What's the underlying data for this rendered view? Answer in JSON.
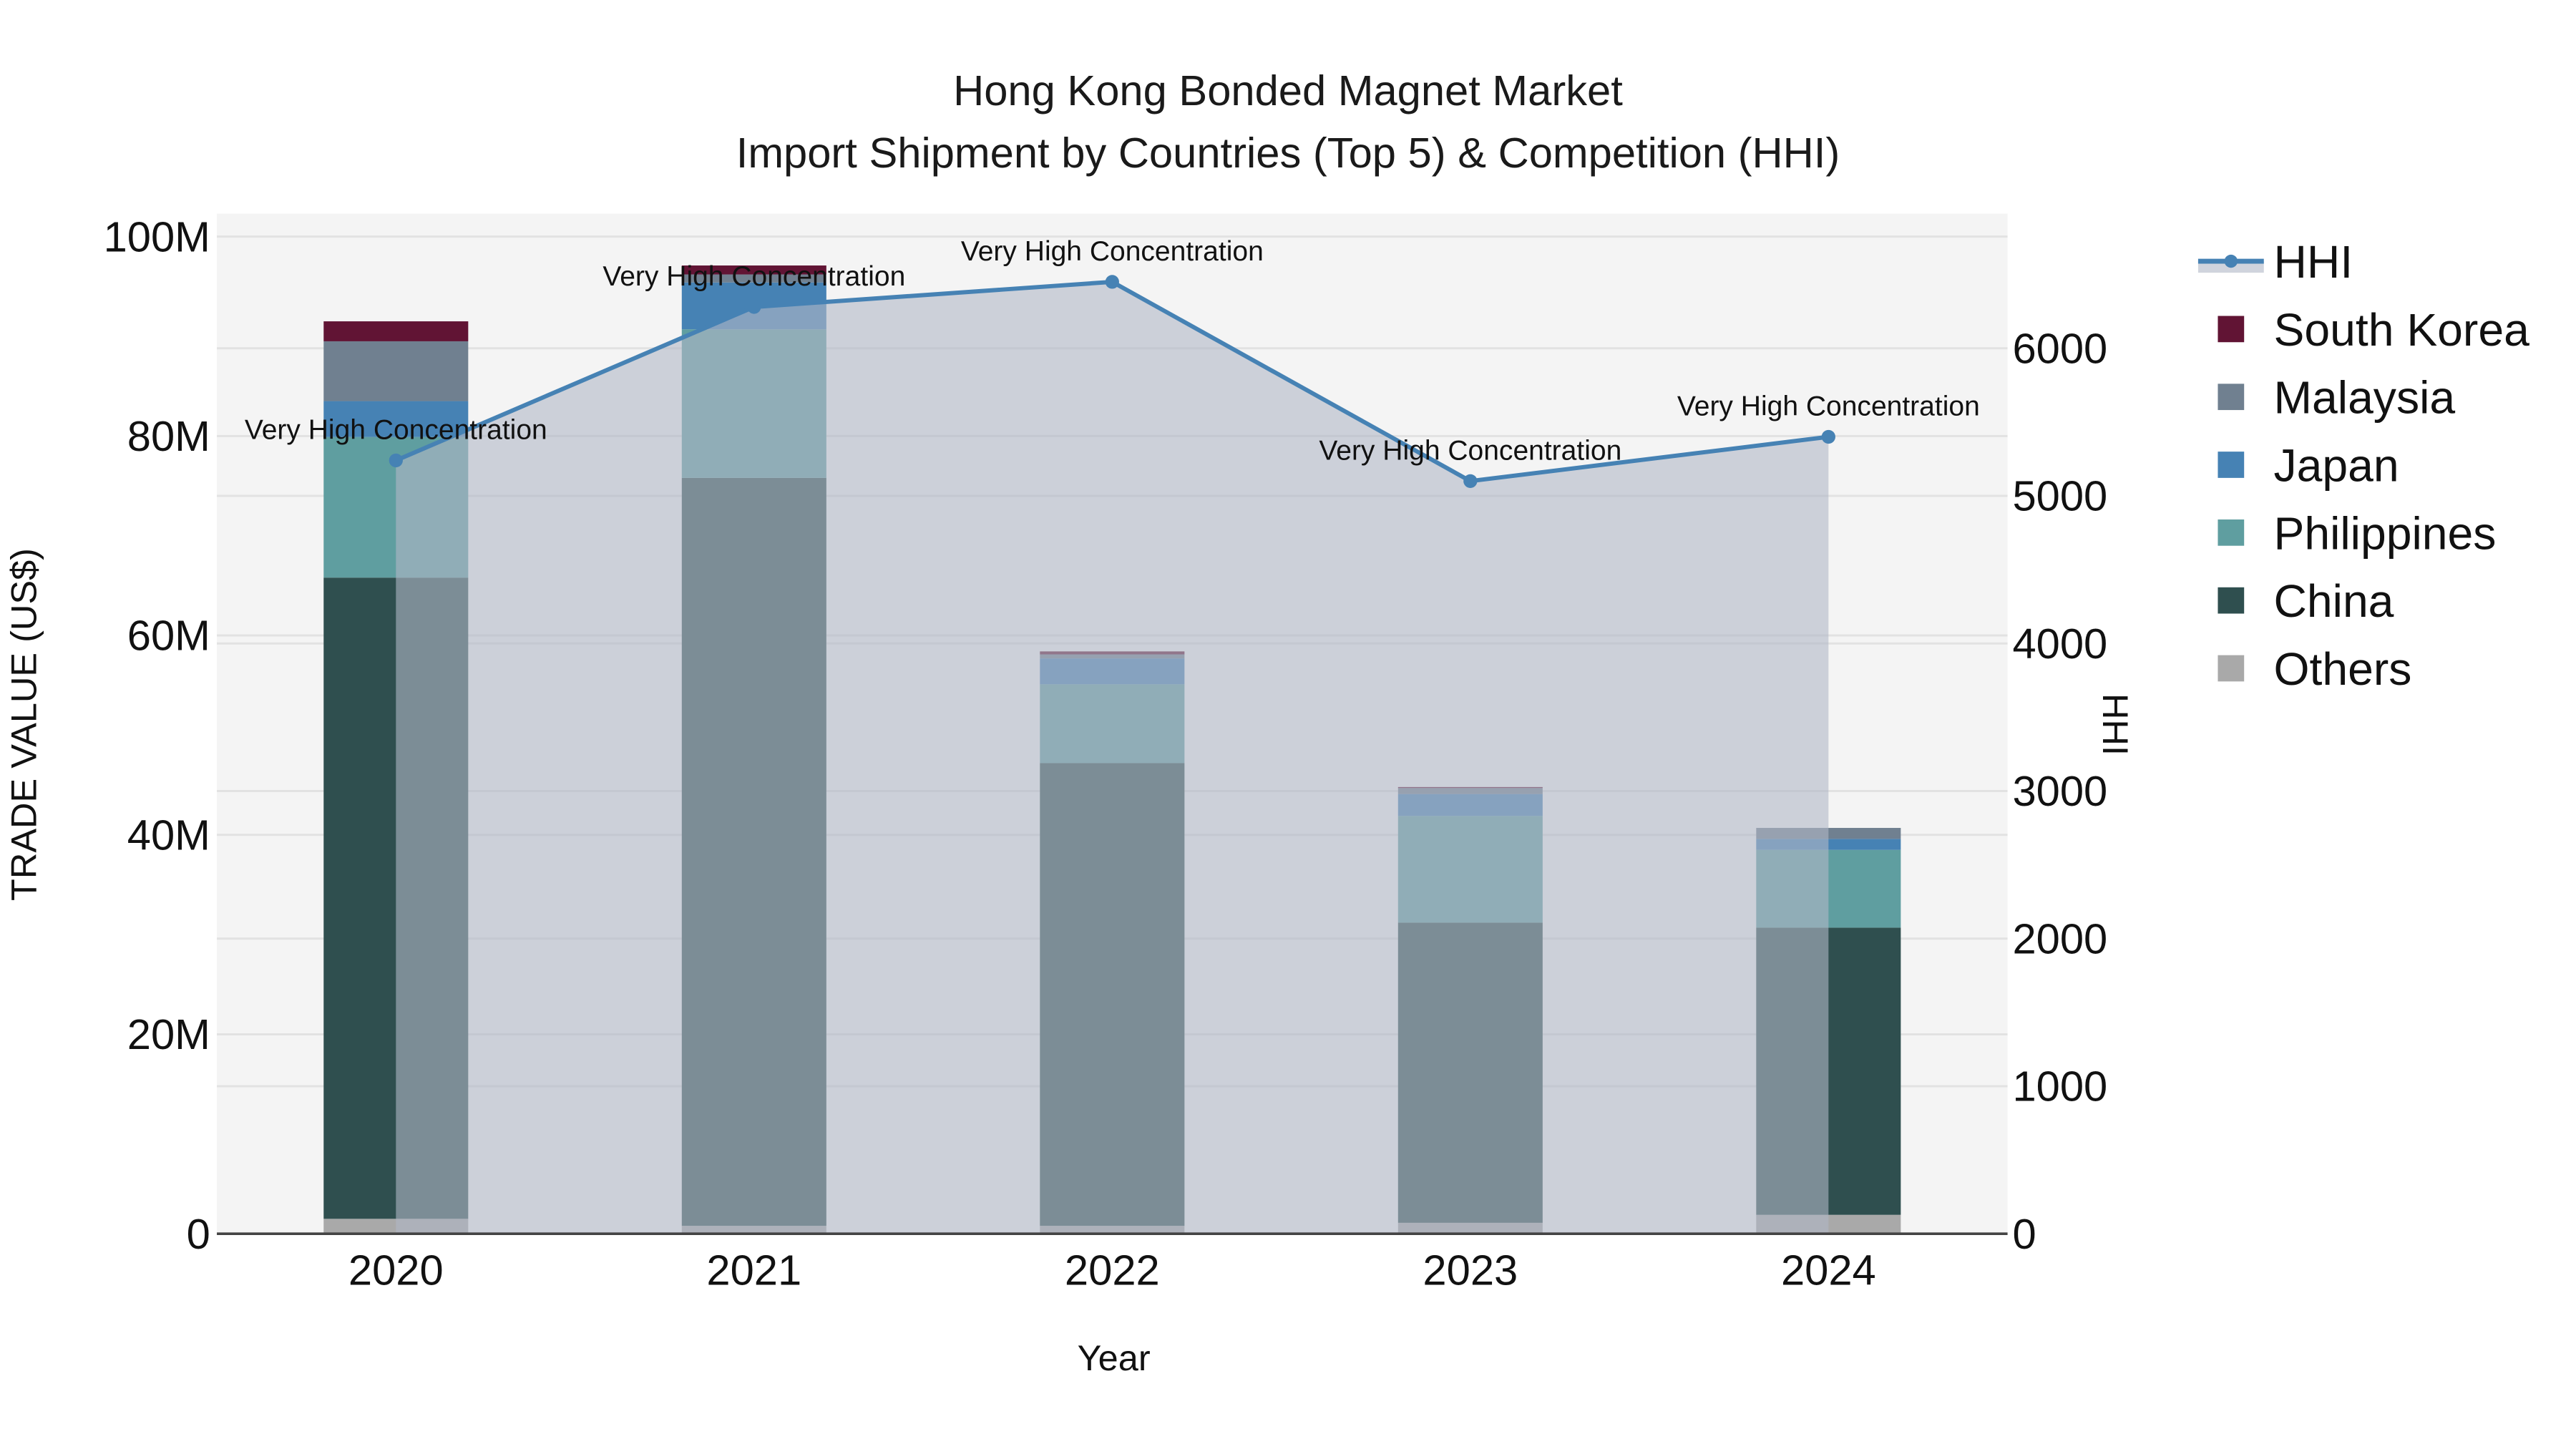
{
  "chart_data": {
    "type": "bar",
    "subtype": "stacked bar with overlaid area/line (secondary axis)",
    "title": "Hong Kong Bonded Magnet Market",
    "subtitle": "Import Shipment by Countries (Top 5) & Competition (HHI)",
    "xlabel": "Year",
    "ylabel": "TRADE VALUE (US$)",
    "y2label": "HHI",
    "categories": [
      "2020",
      "2021",
      "2022",
      "2023",
      "2024"
    ],
    "ylim": [
      0,
      102000000
    ],
    "y2lim": [
      0,
      6900
    ],
    "yticks": [
      {
        "value": 0,
        "label": "0"
      },
      {
        "value": 20000000,
        "label": "20M"
      },
      {
        "value": 40000000,
        "label": "40M"
      },
      {
        "value": 60000000,
        "label": "60M"
      },
      {
        "value": 80000000,
        "label": "80M"
      },
      {
        "value": 100000000,
        "label": "100M"
      }
    ],
    "y2ticks": [
      {
        "value": 0,
        "label": "0"
      },
      {
        "value": 1000,
        "label": "1000"
      },
      {
        "value": 2000,
        "label": "2000"
      },
      {
        "value": 3000,
        "label": "3000"
      },
      {
        "value": 4000,
        "label": "4000"
      },
      {
        "value": 5000,
        "label": "5000"
      },
      {
        "value": 6000,
        "label": "6000"
      }
    ],
    "grid": true,
    "legend_position": "right",
    "series": [
      {
        "name": "Others",
        "color": "#a9a9a9",
        "values": [
          1500000,
          800000,
          800000,
          1100000,
          1900000
        ]
      },
      {
        "name": "China",
        "color": "#2f4f4f",
        "values": [
          64300000,
          75000000,
          46400000,
          30100000,
          28800000
        ]
      },
      {
        "name": "Philippines",
        "color": "#5f9ea0",
        "values": [
          14100000,
          14900000,
          7900000,
          10700000,
          7800000
        ]
      },
      {
        "name": "Japan",
        "color": "#4682b4",
        "values": [
          3600000,
          4700000,
          2600000,
          2200000,
          1100000
        ]
      },
      {
        "name": "Malaysia",
        "color": "#708090",
        "values": [
          6000000,
          800000,
          400000,
          600000,
          1100000
        ]
      },
      {
        "name": "South Korea",
        "color": "#611434",
        "values": [
          2000000,
          900000,
          300000,
          100000,
          0
        ]
      }
    ],
    "line_series": {
      "name": "HHI",
      "axis": "y2",
      "color": "#4682b4",
      "fill_color": "rgba(176,184,198,0.6)",
      "values": [
        5240,
        6280,
        6450,
        5100,
        5400
      ],
      "annotations": [
        "Very High Concentration",
        "Very High Concentration",
        "Very High Concentration",
        "Very High Concentration",
        "Very High Concentration"
      ]
    }
  },
  "legend": {
    "items": [
      {
        "label": "HHI",
        "kind": "line",
        "color": "#4682b4"
      },
      {
        "label": "South Korea",
        "kind": "box",
        "color": "#611434"
      },
      {
        "label": "Malaysia",
        "kind": "box",
        "color": "#708090"
      },
      {
        "label": "Japan",
        "kind": "box",
        "color": "#4682b4"
      },
      {
        "label": "Philippines",
        "kind": "box",
        "color": "#5f9ea0"
      },
      {
        "label": "China",
        "kind": "box",
        "color": "#2f4f4f"
      },
      {
        "label": "Others",
        "kind": "box",
        "color": "#a9a9a9"
      }
    ]
  },
  "colors": {
    "plot_bg": "#f4f4f4",
    "grid": "#e2e2e2",
    "axis_line": "#444444"
  }
}
